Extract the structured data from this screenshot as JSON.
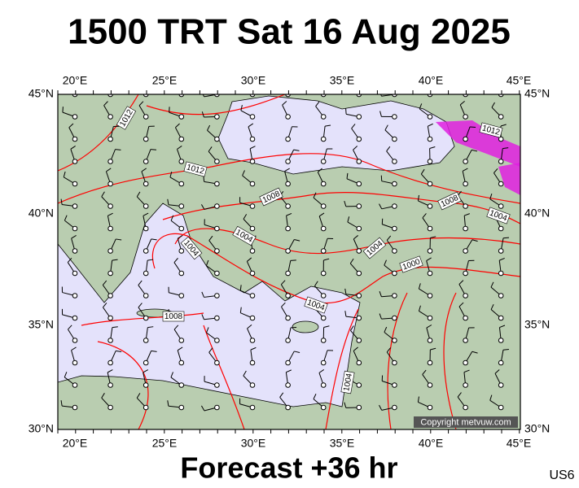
{
  "title": "1500 TRT Sat 16 Aug 2025",
  "map": {
    "lon_labels": [
      "20°E",
      "25°E",
      "30°E",
      "35°E",
      "40°E",
      "45°E"
    ],
    "lat_labels": [
      "45°N",
      "40°N",
      "35°N",
      "30°N"
    ],
    "isobar_labels": [
      "1012",
      "1012",
      "1008",
      "1004",
      "1004",
      "1008",
      "1004",
      "1004",
      "1000",
      "1008",
      "1004",
      "1012",
      "1004"
    ],
    "copyright": "Copyright metvuw.com"
  },
  "footer": {
    "forecast": "Forecast +36 hr",
    "code": "US6"
  }
}
